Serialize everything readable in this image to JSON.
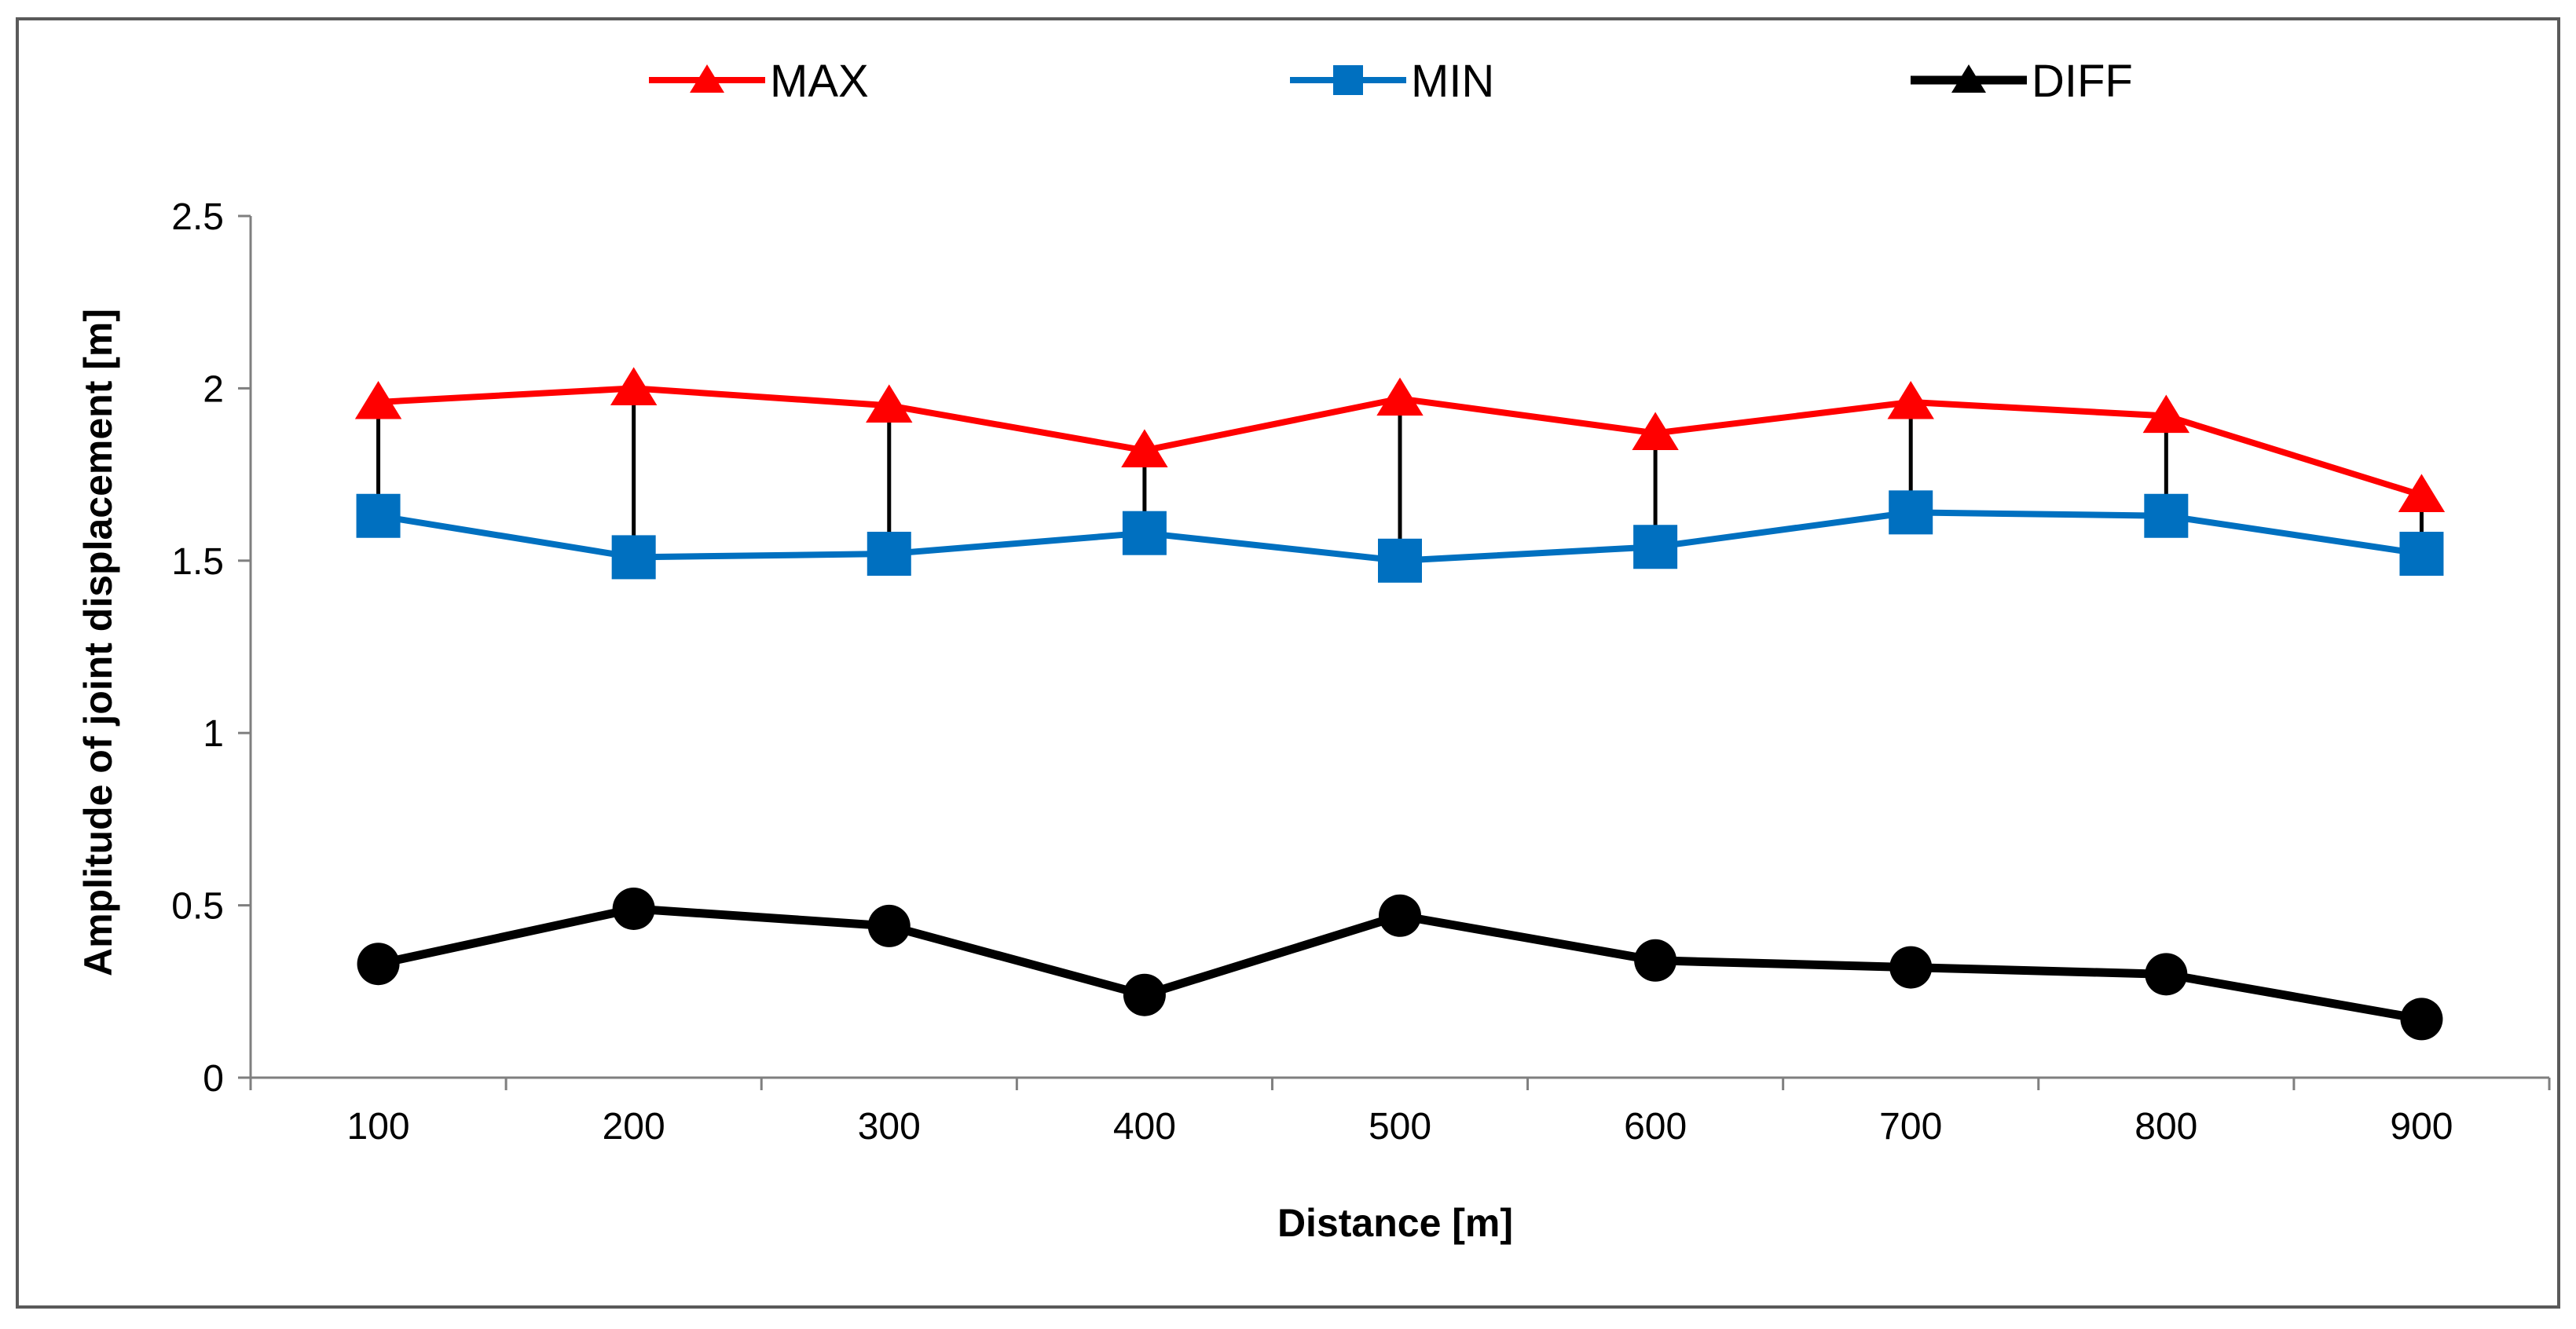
{
  "chart_data": {
    "type": "line",
    "title": "",
    "xlabel": "Distance [m]",
    "ylabel": "Amplitude of joint displacement [m]",
    "categories": [
      "100",
      "200",
      "300",
      "400",
      "500",
      "600",
      "700",
      "800",
      "900"
    ],
    "ylim": [
      0,
      2.5
    ],
    "yticks": [
      "0",
      "0.5",
      "1",
      "1.5",
      "2",
      "2.5"
    ],
    "grid": false,
    "legend_position": "top",
    "series": [
      {
        "name": "MAX",
        "color": "#ff0000",
        "marker": "triangle",
        "values": [
          1.96,
          2.0,
          1.95,
          1.82,
          1.97,
          1.87,
          1.96,
          1.92,
          1.69
        ]
      },
      {
        "name": "MIN",
        "color": "#0070c0",
        "marker": "square",
        "values": [
          1.63,
          1.51,
          1.52,
          1.58,
          1.5,
          1.54,
          1.64,
          1.63,
          1.52
        ]
      },
      {
        "name": "DIFF",
        "color": "#000000",
        "marker": "triangle",
        "values": [
          0.33,
          0.49,
          0.44,
          0.24,
          0.47,
          0.34,
          0.32,
          0.3,
          0.17
        ]
      }
    ],
    "hi_lo_lines": true,
    "diff_marker_in_plot": "circle"
  }
}
